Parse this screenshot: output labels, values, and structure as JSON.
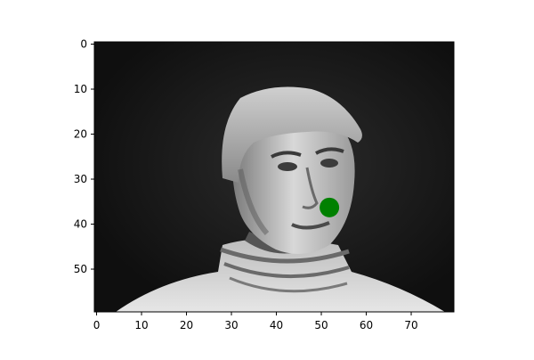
{
  "chart_data": {
    "type": "image",
    "title": "",
    "xlabel": "",
    "ylabel": "",
    "image_size": {
      "width": 80,
      "height": 60
    },
    "colormap": "gray",
    "xlim": [
      -0.5,
      79.5
    ],
    "ylim": [
      59.5,
      -0.5
    ],
    "x_ticks": [
      0,
      10,
      20,
      30,
      40,
      50,
      60,
      70
    ],
    "y_ticks": [
      0,
      10,
      20,
      30,
      40,
      50
    ],
    "grid": false,
    "image_description": "grayscale portrait photo of a man with short hair wearing a turtleneck sweater, dark background",
    "marker": {
      "x": 51.8,
      "y": 36.3,
      "color": "#008000",
      "shape": "circle"
    }
  }
}
